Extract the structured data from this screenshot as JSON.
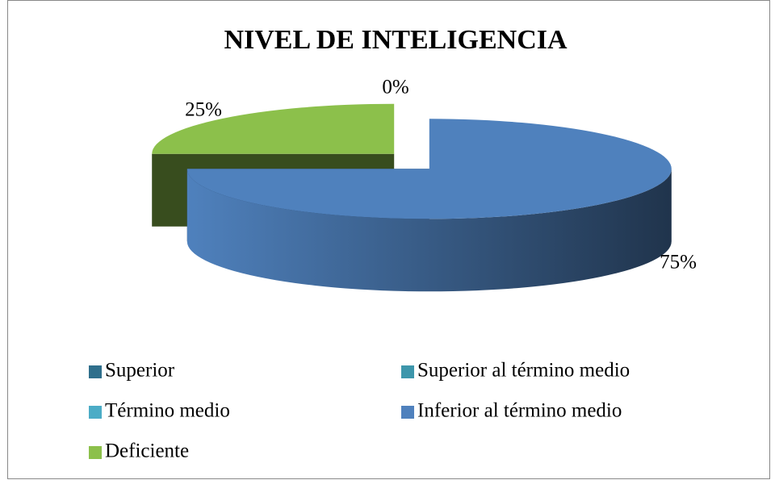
{
  "chart_data": {
    "type": "pie",
    "title": "NIVEL DE INTELIGENCIA",
    "categories": [
      "Superior",
      "Superior al término medio",
      "Término medio",
      "Inferior al término medio",
      "Deficiente"
    ],
    "values": [
      0,
      0,
      0,
      75,
      25
    ],
    "value_labels": [
      "0%",
      null,
      null,
      "75%",
      "25%"
    ],
    "colors": [
      "#2f6f8c",
      "#3d96ab",
      "#4bacc6",
      "#4f81bd",
      "#8cc04b"
    ],
    "legend": "bottom"
  }
}
